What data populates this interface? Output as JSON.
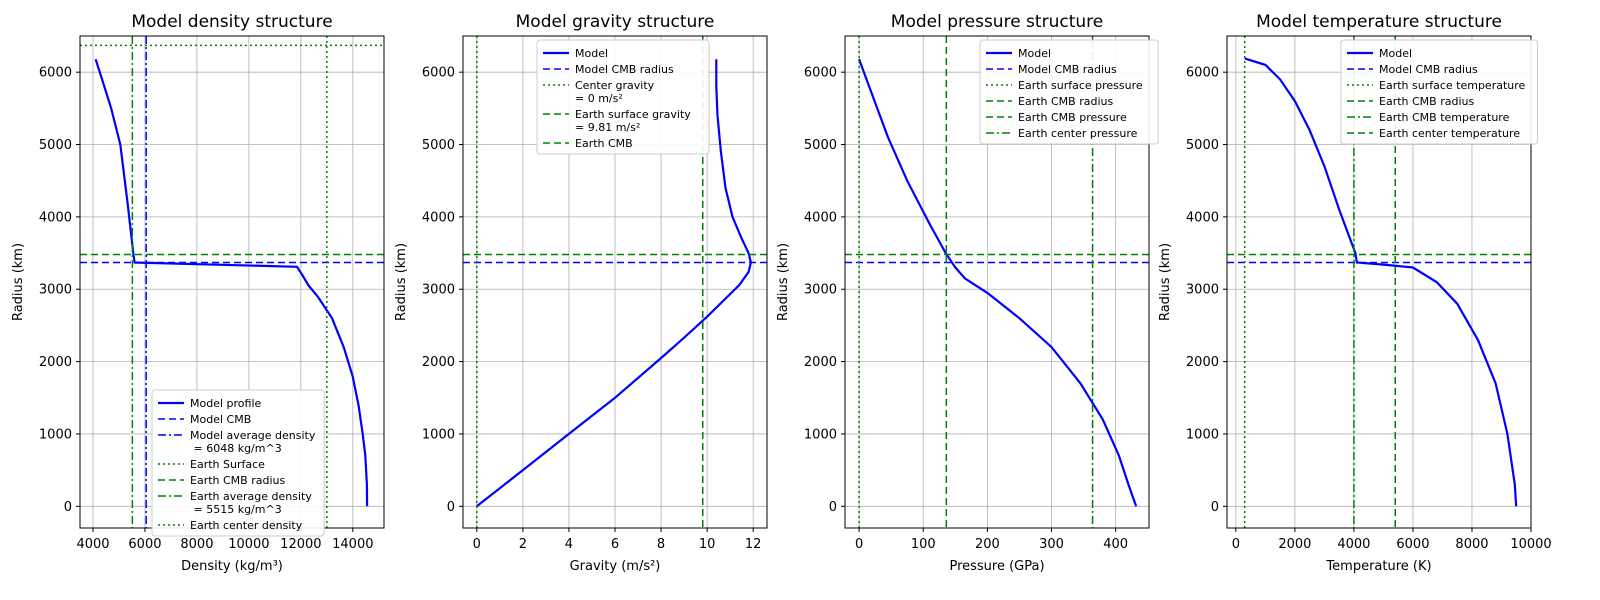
{
  "chart_data": [
    {
      "type": "line",
      "title": "Model density structure",
      "xlabel": "Density (kg/m³)",
      "ylabel": "Radius (km)",
      "xlim": [
        3500,
        15200
      ],
      "ylim": [
        -300,
        6500
      ],
      "xticks": [
        4000,
        6000,
        8000,
        10000,
        12000,
        14000
      ],
      "yticks": [
        0,
        1000,
        2000,
        3000,
        4000,
        5000,
        6000
      ],
      "grid": true,
      "legend_position": "lower-center",
      "series": [
        {
          "name": "Model profile",
          "style": "solid",
          "color": "#0000ff",
          "x": [
            14550,
            14540,
            14480,
            14380,
            14220,
            13990,
            13650,
            13200,
            12650,
            12300,
            12050,
            11850,
            5600,
            5550,
            5330,
            5050,
            4700,
            4350,
            4100
          ],
          "y": [
            0,
            300,
            700,
            1000,
            1400,
            1800,
            2200,
            2600,
            2900,
            3050,
            3200,
            3310,
            3370,
            3500,
            4200,
            5000,
            5500,
            5900,
            6180
          ]
        },
        {
          "name": "Model CMB",
          "style": "dashed",
          "color": "#0000ff",
          "hline": 3370
        },
        {
          "name": "Model average density\n = 6048 kg/m^3",
          "style": "dashdot",
          "color": "#0000ff",
          "vline": 6048
        },
        {
          "name": "Earth Surface",
          "style": "dotted",
          "color": "#008000",
          "hline": 6371
        },
        {
          "name": "Earth CMB radius",
          "style": "dashed",
          "color": "#008000",
          "hline": 3480
        },
        {
          "name": "Earth average density\n = 5515 kg/m^3",
          "style": "dashdot",
          "color": "#008000",
          "vline": 5515
        },
        {
          "name": "Earth center density",
          "style": "dotted",
          "color": "#008000",
          "vline": 13000
        }
      ]
    },
    {
      "type": "line",
      "title": "Model gravity structure",
      "xlabel": "Gravity (m/s²)",
      "ylabel": "Radius (km)",
      "xlim": [
        -0.6,
        12.6
      ],
      "ylim": [
        -300,
        6500
      ],
      "xticks": [
        0,
        2,
        4,
        6,
        8,
        10,
        12
      ],
      "yticks": [
        0,
        1000,
        2000,
        3000,
        4000,
        5000,
        6000
      ],
      "grid": true,
      "legend_position": "upper-center",
      "series": [
        {
          "name": "Model",
          "style": "solid",
          "color": "#0000ff",
          "x": [
            0,
            2,
            4,
            6,
            8,
            9,
            10,
            10.8,
            11.4,
            11.8,
            11.9,
            11.8,
            11.5,
            11.1,
            10.8,
            10.6,
            10.45,
            10.4,
            10.4
          ],
          "y": [
            0,
            500,
            1000,
            1500,
            2050,
            2330,
            2620,
            2870,
            3060,
            3240,
            3370,
            3500,
            3700,
            4000,
            4400,
            4900,
            5400,
            5800,
            6180
          ]
        },
        {
          "name": "Model CMB radius",
          "style": "dashed",
          "color": "#0000ff",
          "hline": 3370
        },
        {
          "name": "Center gravity\n= 0 m/s²",
          "style": "dotted",
          "color": "#008000",
          "vline": 0
        },
        {
          "name": "Earth surface gravity\n= 9.81 m/s²",
          "style": "dashed",
          "color": "#008000",
          "vline": 9.81
        },
        {
          "name": "Earth CMB",
          "style": "dashed",
          "color": "#008000",
          "hline": 3480
        }
      ]
    },
    {
      "type": "line",
      "title": "Model pressure structure",
      "xlabel": "Pressure (GPa)",
      "ylabel": "Radius (km)",
      "xlim": [
        -22,
        452
      ],
      "ylim": [
        -300,
        6500
      ],
      "xticks": [
        0,
        100,
        200,
        300,
        400
      ],
      "yticks": [
        0,
        1000,
        2000,
        3000,
        4000,
        5000,
        6000
      ],
      "grid": true,
      "legend_position": "upper-right",
      "series": [
        {
          "name": "Model",
          "style": "solid",
          "color": "#0000ff",
          "x": [
            0,
            20,
            45,
            75,
            110,
            135,
            150,
            165,
            200,
            250,
            300,
            345,
            380,
            405,
            420,
            430,
            432
          ],
          "y": [
            6180,
            5700,
            5100,
            4500,
            3900,
            3500,
            3300,
            3150,
            2950,
            2600,
            2200,
            1700,
            1200,
            700,
            300,
            50,
            0
          ]
        },
        {
          "name": "Model CMB radius",
          "style": "dashed",
          "color": "#0000ff",
          "hline": 3370
        },
        {
          "name": "Earth surface pressure",
          "style": "dotted",
          "color": "#008000",
          "vline": 0
        },
        {
          "name": "Earth CMB radius",
          "style": "dashed",
          "color": "#008000",
          "hline": 3480
        },
        {
          "name": "Earth CMB pressure",
          "style": "dashed",
          "color": "#008000",
          "vline": 136
        },
        {
          "name": "Earth center pressure",
          "style": "dashdot",
          "color": "#008000",
          "vline": 364
        }
      ]
    },
    {
      "type": "line",
      "title": "Model temperature structure",
      "xlabel": "Temperature (K)",
      "ylabel": "Radius (km)",
      "xlim": [
        -300,
        10000
      ],
      "ylim": [
        -300,
        6500
      ],
      "xticks": [
        0,
        2000,
        4000,
        6000,
        8000,
        10000
      ],
      "yticks": [
        0,
        1000,
        2000,
        3000,
        4000,
        5000,
        6000
      ],
      "grid": true,
      "legend_position": "upper-right",
      "series": [
        {
          "name": "Model",
          "style": "solid",
          "color": "#0000ff",
          "x": [
            300,
            1000,
            1500,
            2000,
            2500,
            3000,
            3500,
            4050,
            4100,
            5000,
            6000,
            6800,
            7500,
            8200,
            8800,
            9200,
            9450,
            9500
          ],
          "y": [
            6190,
            6100,
            5900,
            5600,
            5200,
            4700,
            4100,
            3500,
            3370,
            3340,
            3300,
            3100,
            2800,
            2300,
            1700,
            1000,
            300,
            0
          ]
        },
        {
          "name": "Model CMB radius",
          "style": "dashed",
          "color": "#0000ff",
          "hline": 3370
        },
        {
          "name": "Earth surface temperature",
          "style": "dotted",
          "color": "#008000",
          "vline": 300
        },
        {
          "name": "Earth CMB radius",
          "style": "dashed",
          "color": "#008000",
          "hline": 3480
        },
        {
          "name": "Earth CMB temperature",
          "style": "dashdot",
          "color": "#008000",
          "vline": 4000
        },
        {
          "name": "Earth center temperature",
          "style": "dashed",
          "color": "#008000",
          "vline": 5400
        }
      ]
    }
  ]
}
